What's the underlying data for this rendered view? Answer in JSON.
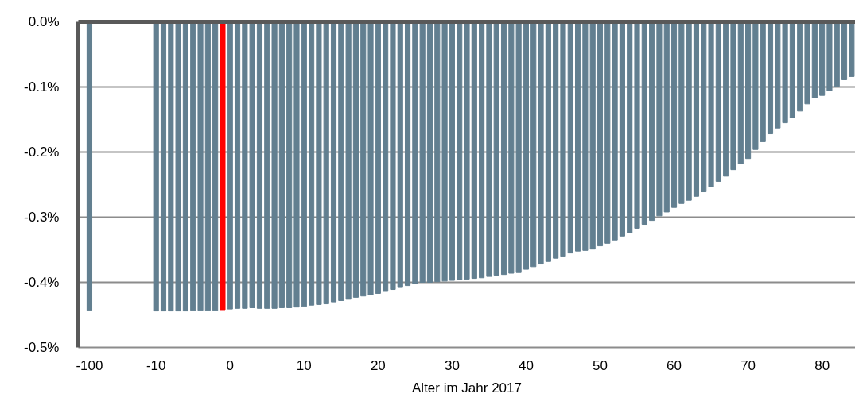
{
  "chart_data": {
    "type": "bar",
    "xlabel": "Alter im Jahr 2017",
    "categories": [
      "-100",
      null,
      null,
      null,
      null,
      null,
      null,
      null,
      null,
      "-10",
      null,
      null,
      null,
      null,
      null,
      null,
      null,
      null,
      null,
      "0",
      null,
      null,
      null,
      null,
      null,
      null,
      null,
      null,
      null,
      "10",
      null,
      null,
      null,
      null,
      null,
      null,
      null,
      null,
      null,
      "20",
      null,
      null,
      null,
      null,
      null,
      null,
      null,
      null,
      null,
      "30",
      null,
      null,
      null,
      null,
      null,
      null,
      null,
      null,
      null,
      "40",
      null,
      null,
      null,
      null,
      null,
      null,
      null,
      null,
      null,
      "50",
      null,
      null,
      null,
      null,
      null,
      null,
      null,
      null,
      null,
      "60",
      null,
      null,
      null,
      null,
      null,
      null,
      null,
      null,
      null,
      "70",
      null,
      null,
      null,
      null,
      null,
      null,
      null,
      null,
      null,
      "80",
      null,
      null,
      null,
      null
    ],
    "values": [
      -0.443,
      null,
      null,
      null,
      null,
      null,
      null,
      null,
      null,
      -0.444,
      -0.444,
      -0.444,
      -0.444,
      -0.444,
      -0.443,
      -0.443,
      -0.443,
      -0.443,
      -0.442,
      -0.441,
      -0.44,
      -0.44,
      -0.439,
      -0.44,
      -0.44,
      -0.44,
      -0.439,
      -0.439,
      -0.438,
      -0.437,
      -0.435,
      -0.434,
      -0.433,
      -0.43,
      -0.428,
      -0.426,
      -0.423,
      -0.421,
      -0.419,
      -0.417,
      -0.414,
      -0.411,
      -0.408,
      -0.405,
      -0.402,
      -0.4,
      -0.4,
      -0.399,
      -0.398,
      -0.397,
      -0.396,
      -0.395,
      -0.394,
      -0.393,
      -0.391,
      -0.389,
      -0.388,
      -0.386,
      -0.385,
      -0.38,
      -0.376,
      -0.372,
      -0.368,
      -0.363,
      -0.36,
      -0.355,
      -0.352,
      -0.351,
      -0.349,
      -0.344,
      -0.34,
      -0.335,
      -0.329,
      -0.324,
      -0.317,
      -0.311,
      -0.305,
      -0.298,
      -0.292,
      -0.285,
      -0.279,
      -0.274,
      -0.268,
      -0.261,
      -0.253,
      -0.245,
      -0.237,
      -0.227,
      -0.218,
      -0.21,
      -0.196,
      -0.184,
      -0.172,
      -0.163,
      -0.155,
      -0.147,
      -0.137,
      -0.126,
      -0.117,
      -0.113,
      -0.106,
      -0.099,
      -0.089,
      -0.084
    ],
    "colors": [
      "#627f90",
      null,
      null,
      null,
      null,
      null,
      null,
      null,
      null,
      "#627f90",
      "#627f90",
      "#627f90",
      "#627f90",
      "#627f90",
      "#627f90",
      "#627f90",
      "#627f90",
      "#627f90",
      "#ff0000",
      "#627f90",
      "#627f90",
      "#627f90",
      "#627f90",
      "#627f90",
      "#627f90",
      "#627f90",
      "#627f90",
      "#627f90",
      "#627f90",
      "#627f90",
      "#627f90",
      "#627f90",
      "#627f90",
      "#627f90",
      "#627f90",
      "#627f90",
      "#627f90",
      "#627f90",
      "#627f90",
      "#627f90",
      "#627f90",
      "#627f90",
      "#627f90",
      "#627f90",
      "#627f90",
      "#627f90",
      "#627f90",
      "#627f90",
      "#627f90",
      "#627f90",
      "#627f90",
      "#627f90",
      "#627f90",
      "#627f90",
      "#627f90",
      "#627f90",
      "#627f90",
      "#627f90",
      "#627f90",
      "#627f90",
      "#627f90",
      "#627f90",
      "#627f90",
      "#627f90",
      "#627f90",
      "#627f90",
      "#627f90",
      "#627f90",
      "#627f90",
      "#627f90",
      "#627f90",
      "#627f90",
      "#627f90",
      "#627f90",
      "#627f90",
      "#627f90",
      "#627f90",
      "#627f90",
      "#627f90",
      "#627f90",
      "#627f90",
      "#627f90",
      "#627f90",
      "#627f90",
      "#627f90",
      "#627f90",
      "#627f90",
      "#627f90",
      "#627f90",
      "#627f90",
      "#627f90",
      "#627f90",
      "#627f90",
      "#627f90",
      "#627f90",
      "#627f90",
      "#627f90",
      "#627f90",
      "#627f90",
      "#627f90",
      "#627f90",
      "#627f90",
      "#627f90",
      "#627f90"
    ],
    "ylim": [
      -0.5,
      0
    ],
    "yticks": [
      {
        "value": 0,
        "label": "0.0%"
      },
      {
        "value": -0.1,
        "label": "-0.1%"
      },
      {
        "value": -0.2,
        "label": "-0.2%"
      },
      {
        "value": -0.3,
        "label": "-0.3%"
      },
      {
        "value": -0.4,
        "label": "-0.4%"
      },
      {
        "value": -0.5,
        "label": "-0.5%"
      }
    ],
    "grid": "y"
  }
}
